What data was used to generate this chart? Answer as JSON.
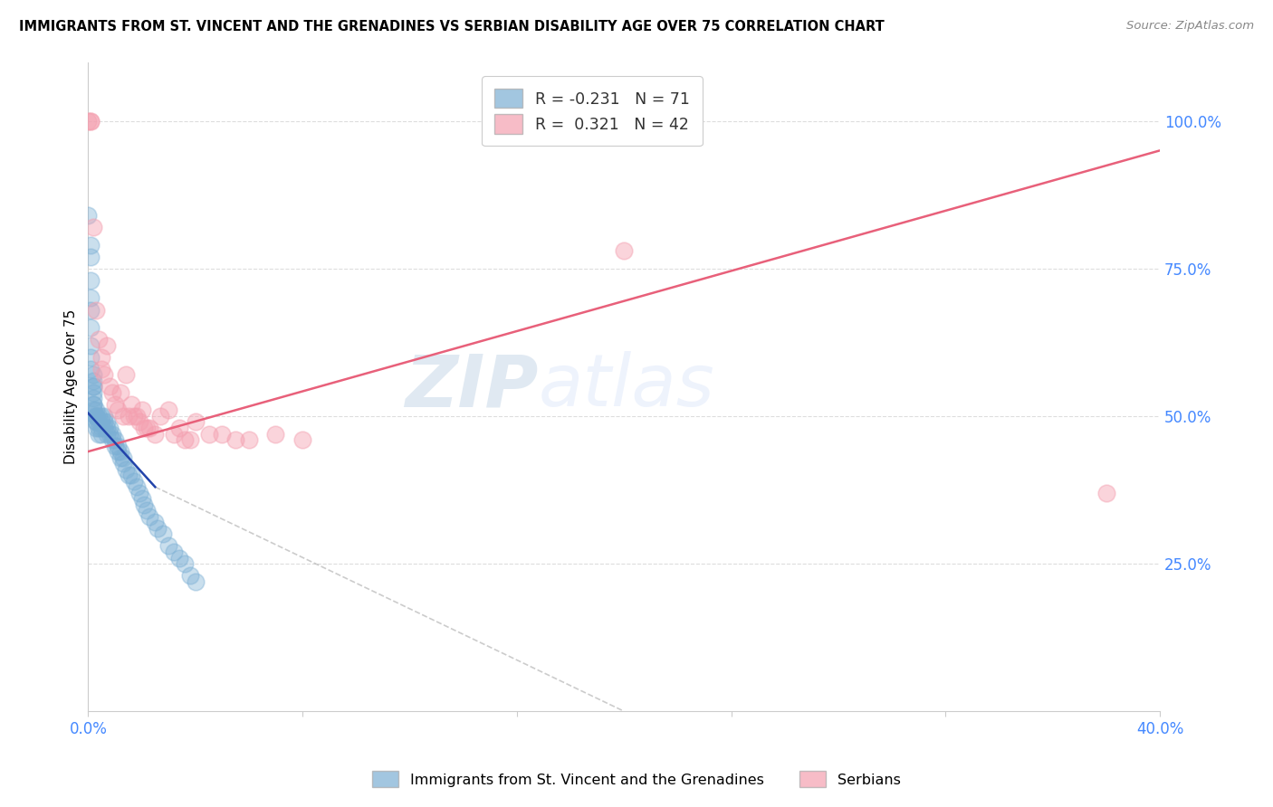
{
  "title": "IMMIGRANTS FROM ST. VINCENT AND THE GRENADINES VS SERBIAN DISABILITY AGE OVER 75 CORRELATION CHART",
  "source": "Source: ZipAtlas.com",
  "ylabel": "Disability Age Over 75",
  "right_yticks": [
    1.0,
    0.75,
    0.5,
    0.25
  ],
  "right_yticklabels": [
    "100.0%",
    "75.0%",
    "50.0%",
    "25.0%"
  ],
  "blue_R": -0.231,
  "blue_N": 71,
  "pink_R": 0.321,
  "pink_N": 42,
  "blue_color": "#7BAFD4",
  "pink_color": "#F4A0B0",
  "blue_line_color": "#2244AA",
  "pink_line_color": "#E8607A",
  "blue_label": "Immigrants from St. Vincent and the Grenadines",
  "pink_label": "Serbians",
  "watermark_zip": "ZIP",
  "watermark_atlas": "atlas",
  "blue_points_x": [
    0.0,
    0.001,
    0.001,
    0.001,
    0.001,
    0.001,
    0.001,
    0.001,
    0.001,
    0.001,
    0.002,
    0.002,
    0.002,
    0.002,
    0.002,
    0.002,
    0.002,
    0.002,
    0.002,
    0.003,
    0.003,
    0.003,
    0.003,
    0.003,
    0.003,
    0.003,
    0.004,
    0.004,
    0.004,
    0.004,
    0.005,
    0.005,
    0.005,
    0.005,
    0.006,
    0.006,
    0.006,
    0.007,
    0.007,
    0.007,
    0.008,
    0.008,
    0.009,
    0.009,
    0.01,
    0.01,
    0.011,
    0.011,
    0.012,
    0.012,
    0.013,
    0.013,
    0.014,
    0.015,
    0.016,
    0.017,
    0.018,
    0.019,
    0.02,
    0.021,
    0.022,
    0.023,
    0.025,
    0.026,
    0.028,
    0.03,
    0.032,
    0.034,
    0.036,
    0.038,
    0.04
  ],
  "blue_points_y": [
    0.84,
    0.79,
    0.77,
    0.73,
    0.7,
    0.68,
    0.65,
    0.62,
    0.6,
    0.58,
    0.57,
    0.56,
    0.55,
    0.55,
    0.54,
    0.53,
    0.52,
    0.52,
    0.51,
    0.51,
    0.5,
    0.5,
    0.5,
    0.49,
    0.49,
    0.48,
    0.5,
    0.49,
    0.48,
    0.47,
    0.5,
    0.49,
    0.48,
    0.47,
    0.5,
    0.49,
    0.48,
    0.49,
    0.48,
    0.47,
    0.48,
    0.47,
    0.47,
    0.46,
    0.46,
    0.45,
    0.45,
    0.44,
    0.44,
    0.43,
    0.43,
    0.42,
    0.41,
    0.4,
    0.4,
    0.39,
    0.38,
    0.37,
    0.36,
    0.35,
    0.34,
    0.33,
    0.32,
    0.31,
    0.3,
    0.28,
    0.27,
    0.26,
    0.25,
    0.23,
    0.22
  ],
  "pink_points_x": [
    0.0,
    0.001,
    0.001,
    0.002,
    0.003,
    0.004,
    0.005,
    0.005,
    0.006,
    0.007,
    0.008,
    0.009,
    0.01,
    0.011,
    0.012,
    0.013,
    0.014,
    0.015,
    0.016,
    0.017,
    0.018,
    0.019,
    0.02,
    0.021,
    0.022,
    0.023,
    0.025,
    0.027,
    0.03,
    0.032,
    0.034,
    0.036,
    0.038,
    0.04,
    0.045,
    0.05,
    0.055,
    0.06,
    0.07,
    0.08,
    0.2,
    0.38
  ],
  "pink_points_y": [
    1.0,
    1.0,
    1.0,
    0.82,
    0.68,
    0.63,
    0.6,
    0.58,
    0.57,
    0.62,
    0.55,
    0.54,
    0.52,
    0.51,
    0.54,
    0.5,
    0.57,
    0.5,
    0.52,
    0.5,
    0.5,
    0.49,
    0.51,
    0.48,
    0.48,
    0.48,
    0.47,
    0.5,
    0.51,
    0.47,
    0.48,
    0.46,
    0.46,
    0.49,
    0.47,
    0.47,
    0.46,
    0.46,
    0.47,
    0.46,
    0.78,
    0.37
  ],
  "xlim": [
    0.0,
    0.4
  ],
  "ylim": [
    0.0,
    1.1
  ],
  "xticks": [
    0.0,
    0.08,
    0.16,
    0.24,
    0.32,
    0.4
  ],
  "xticklabels": [
    "0.0%",
    "",
    "",
    "",
    "",
    "40.0%"
  ],
  "background_color": "#ffffff",
  "pink_trendline_x": [
    0.0,
    0.4
  ],
  "pink_trendline_y": [
    0.44,
    0.95
  ],
  "blue_trendline_x": [
    0.0,
    0.025
  ],
  "blue_trendline_y": [
    0.505,
    0.38
  ],
  "dash_trendline_x": [
    0.025,
    0.2
  ],
  "dash_trendline_y": [
    0.38,
    0.0
  ]
}
